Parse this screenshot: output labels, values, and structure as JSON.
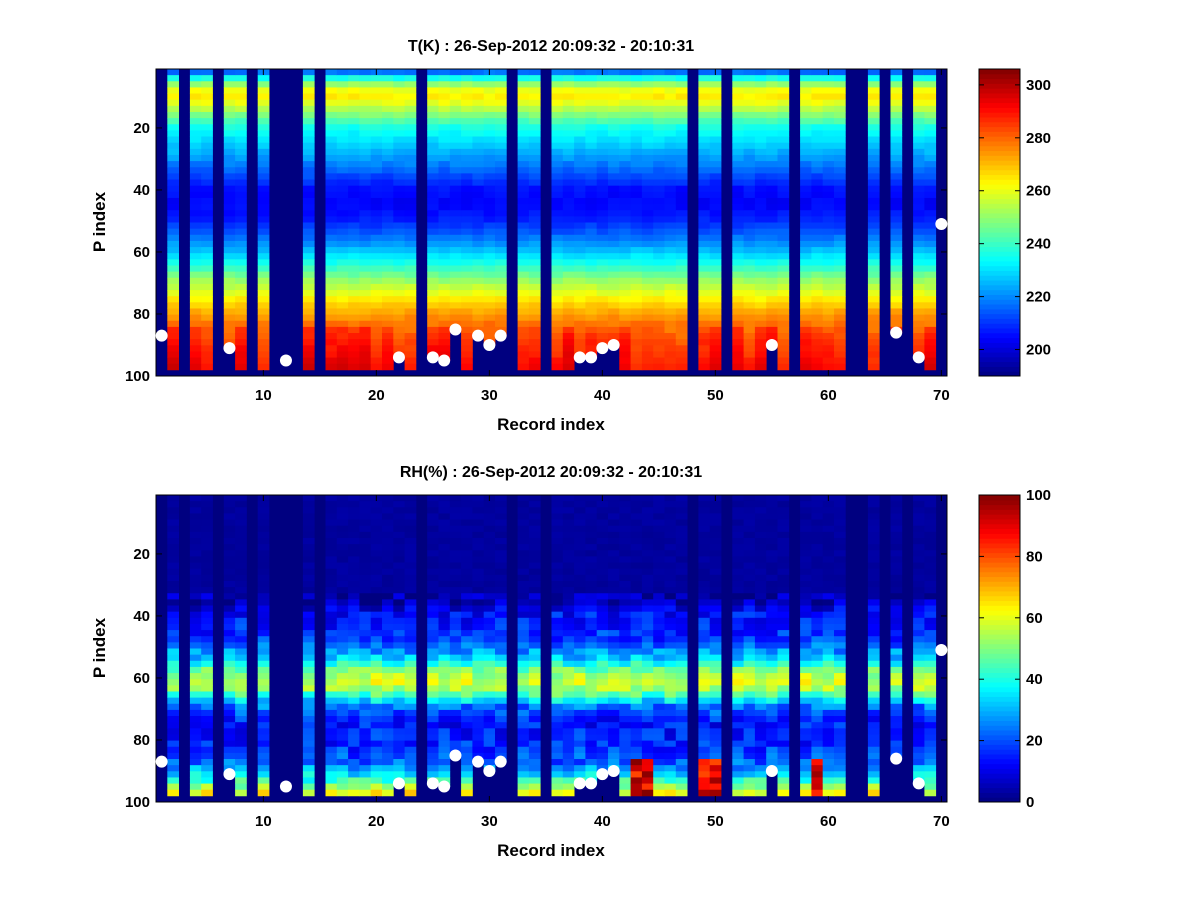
{
  "chart_data": [
    {
      "type": "heatmap",
      "title": "T(K) : 26-Sep-2012 20:09:32 - 20:10:31",
      "xlabel": "Record index",
      "ylabel": "P index",
      "xlim": [
        0.5,
        70.5
      ],
      "ylim": [
        1,
        100
      ],
      "y_reversed": true,
      "x_ticks": [
        10,
        20,
        30,
        40,
        50,
        60,
        70
      ],
      "y_ticks": [
        20,
        40,
        60,
        80,
        100
      ],
      "colormap": "jet",
      "colorbar": {
        "min": 190,
        "max": 306,
        "ticks": [
          200,
          220,
          240,
          260,
          280,
          300
        ]
      },
      "profile_records": [
        2,
        4,
        5,
        7,
        8,
        10,
        14,
        16,
        17,
        18,
        19,
        20,
        21,
        22,
        23,
        25,
        26,
        27,
        28,
        29,
        30,
        31,
        33,
        34,
        36,
        37,
        38,
        39,
        40,
        41,
        42,
        43,
        44,
        45,
        46,
        47,
        49,
        50,
        52,
        53,
        54,
        55,
        56,
        58,
        59,
        60,
        61,
        64,
        66,
        68,
        69
      ],
      "fill_value_note": "",
      "surface_markers": {
        "x": [
          1,
          7,
          12,
          22,
          25,
          26,
          27,
          29,
          30,
          31,
          38,
          39,
          40,
          41,
          55,
          66,
          68,
          70
        ],
        "y": [
          87,
          91,
          95,
          94,
          94,
          95,
          85,
          87,
          90,
          87,
          94,
          94,
          91,
          90,
          90,
          86,
          94,
          51
        ]
      },
      "profile_shape": {
        "p_index": [
          1,
          5,
          9,
          12,
          20,
          30,
          40,
          45,
          50,
          55,
          60,
          65,
          70,
          75,
          80,
          85,
          90,
          95,
          98
        ],
        "temperature_K": [
          208,
          245,
          266,
          260,
          236,
          222,
          206,
          204,
          208,
          216,
          226,
          238,
          251,
          262,
          272,
          280,
          285,
          288,
          290
        ]
      }
    },
    {
      "type": "heatmap",
      "title": "RH(%) : 26-Sep-2012 20:09:32 - 20:10:31",
      "xlabel": "Record index",
      "ylabel": "P index",
      "xlim": [
        0.5,
        70.5
      ],
      "ylim": [
        1,
        100
      ],
      "y_reversed": true,
      "x_ticks": [
        10,
        20,
        30,
        40,
        50,
        60,
        70
      ],
      "y_ticks": [
        20,
        40,
        60,
        80,
        100
      ],
      "colormap": "jet",
      "colorbar": {
        "min": 0,
        "max": 100,
        "ticks": [
          0,
          20,
          40,
          60,
          80,
          100
        ]
      },
      "surface_markers": {
        "x": [
          1,
          7,
          12,
          22,
          25,
          26,
          27,
          29,
          30,
          31,
          38,
          39,
          40,
          41,
          55,
          66,
          68,
          70
        ],
        "y": [
          87,
          91,
          95,
          94,
          94,
          95,
          85,
          87,
          90,
          87,
          94,
          94,
          91,
          90,
          90,
          86,
          94,
          51
        ]
      },
      "profile_shape": {
        "p_index": [
          1,
          30,
          36,
          40,
          48,
          54,
          58,
          61,
          63,
          66,
          70,
          75,
          82,
          88,
          93,
          98
        ],
        "rh_percent": [
          2,
          2,
          5,
          14,
          18,
          32,
          48,
          58,
          58,
          45,
          24,
          14,
          16,
          22,
          38,
          62
        ]
      },
      "high_rh_near_surface_records": [
        29,
        43,
        44,
        49,
        50,
        59,
        66
      ]
    }
  ]
}
